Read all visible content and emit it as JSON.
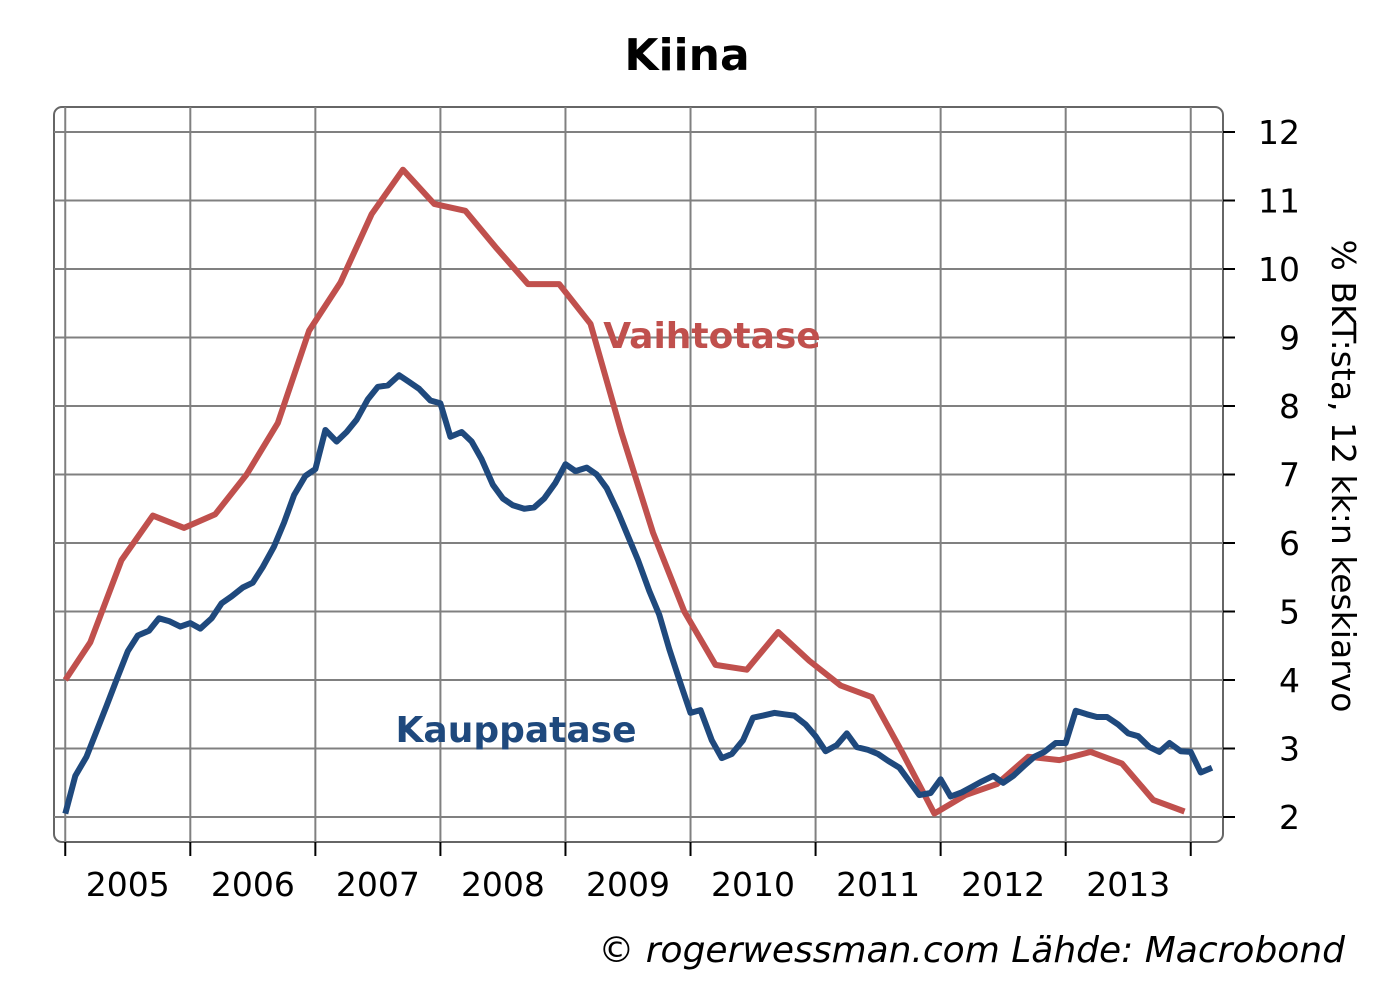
{
  "chart_data": {
    "type": "line",
    "title": "Kiina",
    "ylabel": "% BKT:sta, 12 kk:n keskiarvo",
    "y_axis_side": "right",
    "ylim": [
      2,
      12
    ],
    "y_ticks": [
      "2",
      "3",
      "4",
      "5",
      "6",
      "7",
      "8",
      "9",
      "10",
      "11",
      "12"
    ],
    "xlim": [
      2004.95,
      2014.25
    ],
    "x_ticks": [
      "2005",
      "2006",
      "2007",
      "2008",
      "2009",
      "2010",
      "2011",
      "2012",
      "2013"
    ],
    "grid": true,
    "credit": "© rogerwessman.com Lähde: Macrobond",
    "colors": {
      "series_1": "#c0504d",
      "series_2": "#1f497d",
      "grid": "#808080",
      "frame": "#666666"
    },
    "series": [
      {
        "name": "Vaihtotase",
        "color": "#c0504d",
        "points": [
          [
            2005.0,
            4.0
          ],
          [
            2005.2,
            4.55
          ],
          [
            2005.45,
            5.75
          ],
          [
            2005.7,
            6.4
          ],
          [
            2005.95,
            6.22
          ],
          [
            2006.2,
            6.42
          ],
          [
            2006.45,
            7.0
          ],
          [
            2006.7,
            7.75
          ],
          [
            2006.95,
            9.1
          ],
          [
            2007.2,
            9.8
          ],
          [
            2007.45,
            10.8
          ],
          [
            2007.7,
            11.45
          ],
          [
            2007.95,
            10.95
          ],
          [
            2008.2,
            10.85
          ],
          [
            2008.45,
            10.3
          ],
          [
            2008.7,
            9.78
          ],
          [
            2008.95,
            9.78
          ],
          [
            2009.2,
            9.2
          ],
          [
            2009.45,
            7.6
          ],
          [
            2009.7,
            6.15
          ],
          [
            2009.95,
            5.0
          ],
          [
            2010.2,
            4.22
          ],
          [
            2010.45,
            4.15
          ],
          [
            2010.7,
            4.7
          ],
          [
            2010.95,
            4.28
          ],
          [
            2011.2,
            3.92
          ],
          [
            2011.45,
            3.75
          ],
          [
            2011.7,
            2.92
          ],
          [
            2011.95,
            2.05
          ],
          [
            2012.2,
            2.32
          ],
          [
            2012.45,
            2.48
          ],
          [
            2012.7,
            2.88
          ],
          [
            2012.95,
            2.83
          ],
          [
            2013.2,
            2.95
          ],
          [
            2013.45,
            2.78
          ],
          [
            2013.7,
            2.25
          ],
          [
            2013.95,
            2.08
          ]
        ]
      },
      {
        "name": "Kauppatase",
        "color": "#1f497d",
        "points": [
          [
            2005.0,
            2.05
          ],
          [
            2005.08,
            2.6
          ],
          [
            2005.17,
            2.88
          ],
          [
            2005.25,
            3.25
          ],
          [
            2005.33,
            3.62
          ],
          [
            2005.42,
            4.05
          ],
          [
            2005.5,
            4.42
          ],
          [
            2005.58,
            4.65
          ],
          [
            2005.67,
            4.72
          ],
          [
            2005.75,
            4.9
          ],
          [
            2005.83,
            4.86
          ],
          [
            2005.92,
            4.78
          ],
          [
            2006.0,
            4.83
          ],
          [
            2006.08,
            4.75
          ],
          [
            2006.17,
            4.9
          ],
          [
            2006.25,
            5.12
          ],
          [
            2006.33,
            5.22
          ],
          [
            2006.42,
            5.35
          ],
          [
            2006.5,
            5.42
          ],
          [
            2006.58,
            5.65
          ],
          [
            2006.67,
            5.95
          ],
          [
            2006.75,
            6.3
          ],
          [
            2006.83,
            6.7
          ],
          [
            2006.92,
            6.98
          ],
          [
            2007.0,
            7.08
          ],
          [
            2007.08,
            7.65
          ],
          [
            2007.17,
            7.48
          ],
          [
            2007.25,
            7.62
          ],
          [
            2007.33,
            7.8
          ],
          [
            2007.42,
            8.1
          ],
          [
            2007.5,
            8.28
          ],
          [
            2007.58,
            8.3
          ],
          [
            2007.67,
            8.45
          ],
          [
            2007.75,
            8.35
          ],
          [
            2007.83,
            8.25
          ],
          [
            2007.92,
            8.08
          ],
          [
            2008.0,
            8.04
          ],
          [
            2008.08,
            7.55
          ],
          [
            2008.17,
            7.62
          ],
          [
            2008.25,
            7.48
          ],
          [
            2008.33,
            7.22
          ],
          [
            2008.42,
            6.85
          ],
          [
            2008.5,
            6.65
          ],
          [
            2008.58,
            6.55
          ],
          [
            2008.67,
            6.5
          ],
          [
            2008.75,
            6.52
          ],
          [
            2008.83,
            6.65
          ],
          [
            2008.92,
            6.88
          ],
          [
            2009.0,
            7.15
          ],
          [
            2009.08,
            7.05
          ],
          [
            2009.17,
            7.1
          ],
          [
            2009.25,
            7.0
          ],
          [
            2009.33,
            6.8
          ],
          [
            2009.42,
            6.45
          ],
          [
            2009.5,
            6.1
          ],
          [
            2009.58,
            5.75
          ],
          [
            2009.67,
            5.3
          ],
          [
            2009.75,
            4.95
          ],
          [
            2009.83,
            4.45
          ],
          [
            2009.92,
            3.95
          ],
          [
            2010.0,
            3.52
          ],
          [
            2010.08,
            3.56
          ],
          [
            2010.17,
            3.12
          ],
          [
            2010.25,
            2.86
          ],
          [
            2010.33,
            2.92
          ],
          [
            2010.42,
            3.12
          ],
          [
            2010.5,
            3.45
          ],
          [
            2010.58,
            3.48
          ],
          [
            2010.67,
            3.52
          ],
          [
            2010.75,
            3.5
          ],
          [
            2010.83,
            3.48
          ],
          [
            2010.92,
            3.35
          ],
          [
            2011.0,
            3.18
          ],
          [
            2011.08,
            2.96
          ],
          [
            2011.17,
            3.05
          ],
          [
            2011.25,
            3.22
          ],
          [
            2011.33,
            3.02
          ],
          [
            2011.42,
            2.98
          ],
          [
            2011.5,
            2.92
          ],
          [
            2011.58,
            2.82
          ],
          [
            2011.67,
            2.72
          ],
          [
            2011.75,
            2.52
          ],
          [
            2011.83,
            2.32
          ],
          [
            2011.92,
            2.35
          ],
          [
            2012.0,
            2.55
          ],
          [
            2012.08,
            2.3
          ],
          [
            2012.17,
            2.36
          ],
          [
            2012.25,
            2.44
          ],
          [
            2012.33,
            2.52
          ],
          [
            2012.42,
            2.6
          ],
          [
            2012.5,
            2.5
          ],
          [
            2012.58,
            2.6
          ],
          [
            2012.67,
            2.75
          ],
          [
            2012.75,
            2.88
          ],
          [
            2012.83,
            2.95
          ],
          [
            2012.92,
            3.08
          ],
          [
            2013.0,
            3.08
          ],
          [
            2013.08,
            3.55
          ],
          [
            2013.17,
            3.5
          ],
          [
            2013.25,
            3.46
          ],
          [
            2013.33,
            3.46
          ],
          [
            2013.42,
            3.35
          ],
          [
            2013.5,
            3.22
          ],
          [
            2013.58,
            3.18
          ],
          [
            2013.67,
            3.02
          ],
          [
            2013.75,
            2.95
          ],
          [
            2013.83,
            3.08
          ],
          [
            2013.92,
            2.96
          ],
          [
            2014.0,
            2.95
          ],
          [
            2014.08,
            2.65
          ],
          [
            2014.17,
            2.72
          ]
        ]
      }
    ]
  }
}
